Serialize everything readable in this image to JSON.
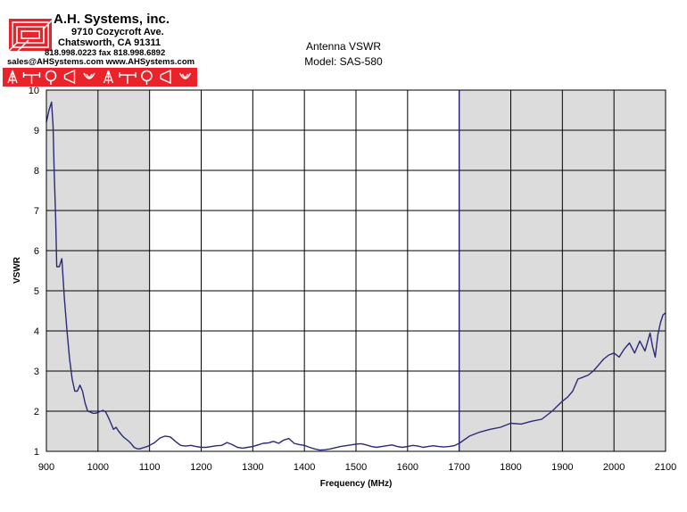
{
  "header": {
    "company": "A.H. Systems, inc.",
    "street": "9710 Cozycroft Ave.",
    "city": "Chatsworth, CA 91311",
    "phone": "818.998.0223 fax 818.998.6892",
    "email": "sales@AHSystems.com www.AHSystems.com",
    "logo_color": "#e8242a",
    "icon_strip": [
      "tree-antenna-icon",
      "dipole-antenna-icon",
      "loop-antenna-icon",
      "horn-antenna-icon",
      "probe-antenna-icon",
      "tree-antenna-icon",
      "dipole-antenna-icon",
      "loop-antenna-icon",
      "horn-antenna-icon",
      "probe-antenna-icon"
    ]
  },
  "colors": {
    "trace": "#2a2a78",
    "shaded_band": "#dcdcdc",
    "grid": "#000000",
    "band_edge": "#1a1a6e"
  },
  "chart_data": {
    "type": "line",
    "title": "Antenna VSWR",
    "subtitle": "Model: SAS-580",
    "xlabel": "Frequency (MHz)",
    "ylabel": "VSWR",
    "xlim": [
      900,
      2100
    ],
    "ylim": [
      1,
      10
    ],
    "x_ticks": [
      "900",
      "1000",
      "1100",
      "1200",
      "1300",
      "1400",
      "1500",
      "1600",
      "1700",
      "1800",
      "1900",
      "2000",
      "2100"
    ],
    "y_ticks": [
      "1",
      "2",
      "3",
      "4",
      "5",
      "6",
      "7",
      "8",
      "9",
      "10"
    ],
    "grid": true,
    "shaded_regions": [
      [
        900,
        1100
      ],
      [
        1700,
        2100
      ]
    ],
    "series": [
      {
        "x": [
          900,
          905,
          910,
          913,
          915,
          918,
          920,
          925,
          930,
          935,
          940,
          945,
          950,
          955,
          960,
          965,
          970,
          975,
          980,
          985,
          990,
          995,
          1000,
          1005,
          1010,
          1015,
          1020,
          1025,
          1030,
          1035,
          1040,
          1045,
          1050,
          1055,
          1060,
          1065,
          1070,
          1075,
          1080,
          1085,
          1090,
          1095,
          1100,
          1110,
          1120,
          1130,
          1140,
          1150,
          1160,
          1170,
          1180,
          1190,
          1200,
          1210,
          1220,
          1230,
          1240,
          1250,
          1260,
          1270,
          1280,
          1290,
          1300,
          1310,
          1320,
          1330,
          1340,
          1350,
          1360,
          1370,
          1380,
          1390,
          1400,
          1410,
          1420,
          1430,
          1440,
          1450,
          1460,
          1470,
          1480,
          1490,
          1500,
          1510,
          1520,
          1530,
          1540,
          1550,
          1560,
          1570,
          1580,
          1590,
          1600,
          1610,
          1620,
          1630,
          1640,
          1650,
          1660,
          1670,
          1680,
          1690,
          1700,
          1720,
          1740,
          1760,
          1780,
          1800,
          1820,
          1840,
          1860,
          1880,
          1900,
          1910,
          1920,
          1930,
          1940,
          1950,
          1960,
          1970,
          1980,
          1990,
          2000,
          2010,
          2020,
          2030,
          2040,
          2050,
          2060,
          2070,
          2075,
          2080,
          2085,
          2090,
          2095,
          2100
        ],
        "values": [
          9.2,
          9.5,
          9.7,
          9.1,
          8.0,
          6.8,
          5.6,
          5.6,
          5.8,
          4.8,
          4.0,
          3.3,
          2.8,
          2.5,
          2.5,
          2.65,
          2.5,
          2.2,
          2.0,
          1.98,
          1.95,
          1.95,
          1.97,
          2.0,
          2.02,
          1.98,
          1.85,
          1.7,
          1.55,
          1.6,
          1.5,
          1.42,
          1.35,
          1.3,
          1.25,
          1.18,
          1.1,
          1.07,
          1.06,
          1.08,
          1.1,
          1.12,
          1.15,
          1.22,
          1.33,
          1.38,
          1.36,
          1.25,
          1.15,
          1.13,
          1.15,
          1.12,
          1.1,
          1.1,
          1.12,
          1.14,
          1.15,
          1.22,
          1.17,
          1.1,
          1.08,
          1.1,
          1.12,
          1.16,
          1.2,
          1.21,
          1.25,
          1.2,
          1.28,
          1.32,
          1.2,
          1.17,
          1.15,
          1.1,
          1.06,
          1.03,
          1.04,
          1.06,
          1.09,
          1.12,
          1.14,
          1.16,
          1.18,
          1.19,
          1.16,
          1.12,
          1.1,
          1.12,
          1.14,
          1.16,
          1.12,
          1.1,
          1.12,
          1.15,
          1.13,
          1.1,
          1.12,
          1.14,
          1.12,
          1.11,
          1.12,
          1.14,
          1.2,
          1.38,
          1.48,
          1.55,
          1.6,
          1.7,
          1.68,
          1.75,
          1.8,
          2.0,
          2.25,
          2.35,
          2.5,
          2.8,
          2.85,
          2.9,
          3.0,
          3.15,
          3.3,
          3.4,
          3.45,
          3.35,
          3.55,
          3.7,
          3.45,
          3.75,
          3.5,
          3.95,
          3.6,
          3.35,
          3.9,
          4.2,
          4.4,
          4.45
        ]
      }
    ]
  }
}
